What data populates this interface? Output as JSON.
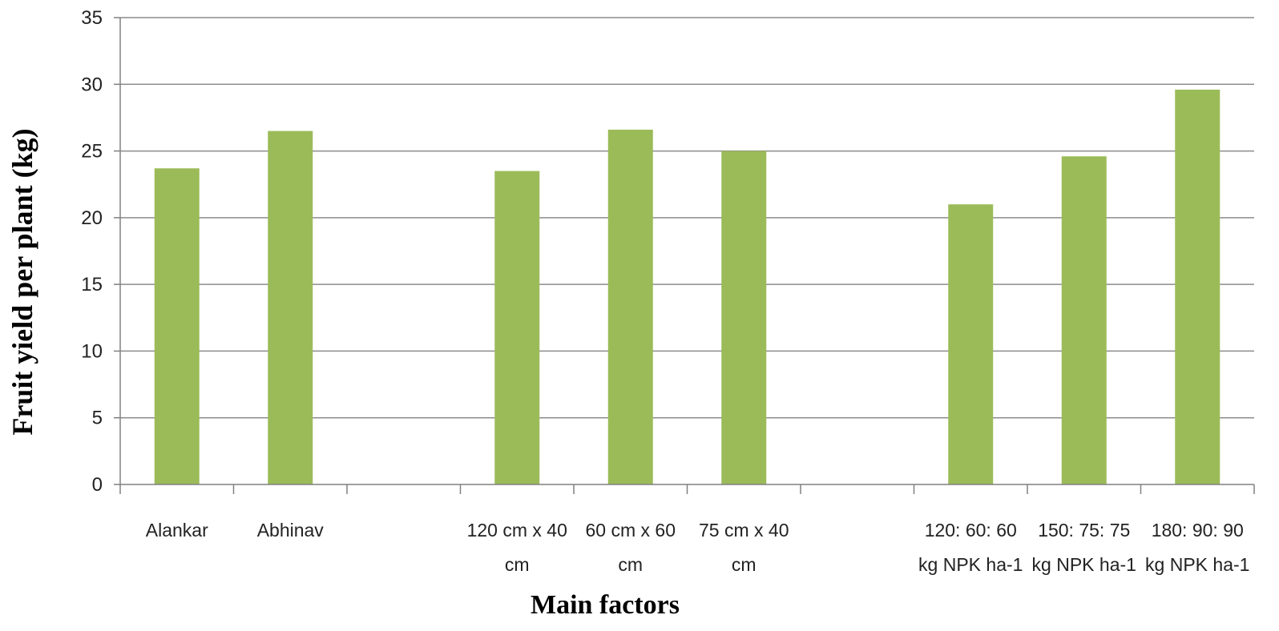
{
  "chart_data": {
    "type": "bar",
    "title": "",
    "xlabel": "Main factors",
    "ylabel": "Fruit yield per plant (kg)",
    "ylim": [
      0,
      35
    ],
    "yticks": [
      0,
      5,
      10,
      15,
      20,
      25,
      30,
      35
    ],
    "grid": true,
    "legend": "none",
    "bar_color": "#9BBB59",
    "categories": [
      [
        "Alankar"
      ],
      [
        "Abhinav"
      ],
      [],
      [
        "120 cm x 40",
        "cm"
      ],
      [
        "60 cm x 60",
        "cm"
      ],
      [
        "75 cm x 40",
        "cm"
      ],
      [],
      [
        "120: 60: 60",
        "kg NPK ha-1"
      ],
      [
        "150: 75: 75",
        "kg NPK ha-1"
      ],
      [
        "180: 90: 90",
        "kg NPK ha-1"
      ]
    ],
    "values": [
      23.7,
      26.5,
      null,
      23.5,
      26.6,
      25.0,
      null,
      21.0,
      24.6,
      29.6
    ]
  }
}
